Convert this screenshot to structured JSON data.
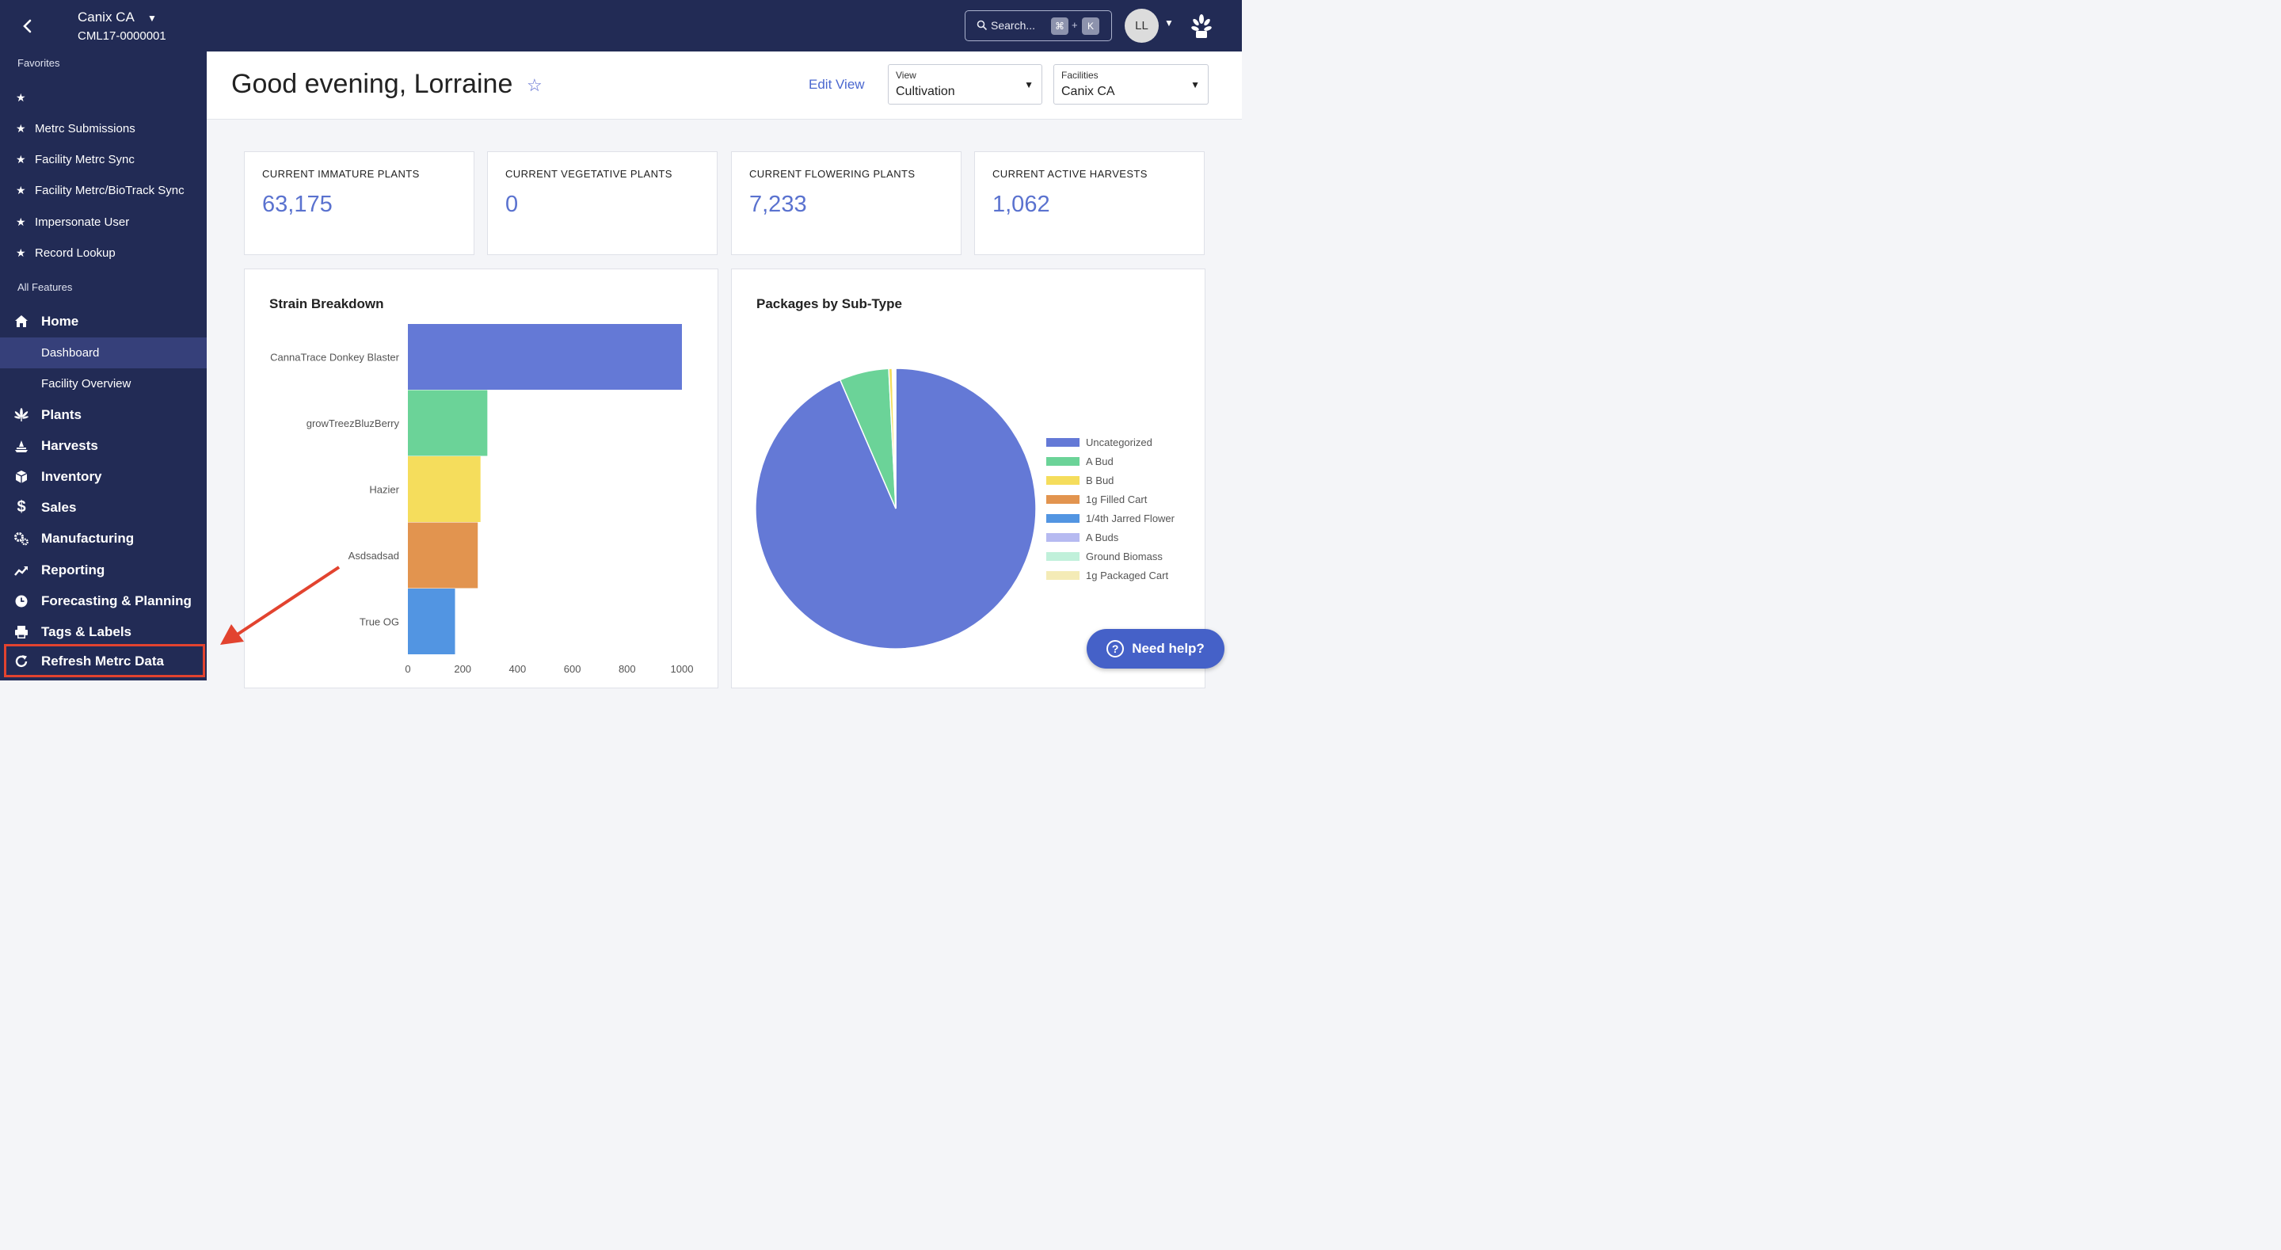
{
  "topbar": {
    "org_name": "Canix CA",
    "org_id": "CML17-0000001",
    "search_placeholder": "Search...",
    "shortcut_key1": "⌘",
    "shortcut_plus": "+",
    "shortcut_key2": "K",
    "avatar_initials": "LL"
  },
  "sidebar": {
    "favorites_heading": "Favorites",
    "favorites": [
      "",
      "Metrc Submissions",
      "Facility Metrc Sync",
      "Facility Metrc/BioTrack Sync",
      "Impersonate User",
      "Record Lookup"
    ],
    "all_features_heading": "All Features",
    "home": "Home",
    "home_sub": [
      "Dashboard",
      "Facility Overview"
    ],
    "nav": [
      "Plants",
      "Harvests",
      "Inventory",
      "Sales",
      "Manufacturing",
      "Reporting",
      "Forecasting & Planning",
      "Tags & Labels",
      "Refresh Metrc Data"
    ]
  },
  "header": {
    "greeting": "Good evening, Lorraine",
    "edit_view": "Edit View",
    "view_label": "View",
    "view_value": "Cultivation",
    "facilities_label": "Facilities",
    "facilities_value": "Canix CA"
  },
  "stats": [
    {
      "label": "CURRENT IMMATURE PLANTS",
      "value": "63,175"
    },
    {
      "label": "CURRENT VEGETATIVE PLANTS",
      "value": "0"
    },
    {
      "label": "CURRENT FLOWERING PLANTS",
      "value": "7,233"
    },
    {
      "label": "CURRENT ACTIVE HARVESTS",
      "value": "1,062"
    }
  ],
  "help": {
    "label": "Need help?"
  },
  "chart_data": [
    {
      "type": "bar",
      "orientation": "horizontal",
      "title": "Strain Breakdown",
      "categories": [
        "CannaTrace Donkey Blaster",
        "growTreezBluzBerry",
        "Hazier",
        "Asdsadsad",
        "True OG"
      ],
      "values": [
        1000,
        290,
        265,
        255,
        172
      ],
      "colors": [
        "#6479d6",
        "#6bd398",
        "#f5dd5c",
        "#e2944f",
        "#5295e2"
      ],
      "xlim": [
        0,
        1000
      ],
      "xticks": [
        0,
        200,
        400,
        600,
        800,
        1000
      ]
    },
    {
      "type": "pie",
      "title": "Packages by Sub-Type",
      "categories": [
        "Uncategorized",
        "A Bud",
        "B Bud",
        "1g Filled Cart",
        "1/4th Jarred Flower",
        "A Buds",
        "Ground Biomass",
        "1g Packaged Cart"
      ],
      "values": [
        93.5,
        5.7,
        0.4,
        0.1,
        0.1,
        0.1,
        0.05,
        0.05
      ],
      "colors": [
        "#6479d6",
        "#6bd398",
        "#f5dd5c",
        "#e2944f",
        "#5295e2",
        "#b6baf1",
        "#c0f0da",
        "#f4ebb6"
      ],
      "legend_position": "right"
    }
  ]
}
